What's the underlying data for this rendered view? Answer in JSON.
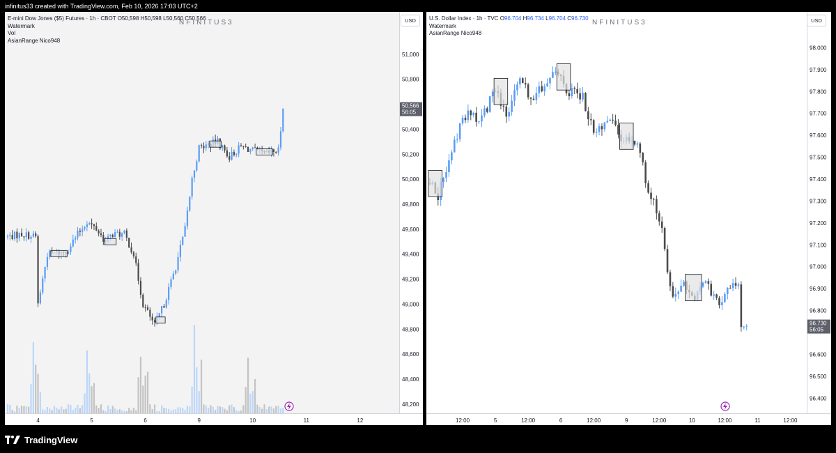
{
  "header": {
    "text": "infinitus33 created with TradingView.com, Feb 10, 2026 17:03 UTC+2"
  },
  "footer": {
    "brand": "TradingView"
  },
  "colors": {
    "up": "#5b9cf6",
    "down": "#4a4a4a",
    "vol_up": "#bcd6fa",
    "vol_down": "#c3c3c3",
    "range_fill": "#e1e1e1",
    "label_bg": "#5d606b",
    "event": "#9c27b0"
  },
  "charts": [
    {
      "title": "E-mini Dow Jones ($5) Futures · 1h · CBOT",
      "o_label": "O",
      "o": "50,598",
      "h_label": "H",
      "h": "50,598",
      "l_label": "L",
      "l": "50,560",
      "c_label": "C",
      "c": "50,566",
      "indicators": [
        "Watermark",
        "Vol",
        "AsianRange Nico948"
      ],
      "watermark": "NFINITUS3",
      "currency": "USD",
      "last_price_label": "50,566",
      "last_price_timer": "56:05",
      "yticks": [
        {
          "v": 51000,
          "t": "51,000"
        },
        {
          "v": 50800,
          "t": "50,800"
        },
        {
          "v": 50600,
          "t": "50,600"
        },
        {
          "v": 50400,
          "t": "50,400"
        },
        {
          "v": 50200,
          "t": "50,200"
        },
        {
          "v": 50000,
          "t": "50,000"
        },
        {
          "v": 49800,
          "t": "49,800"
        },
        {
          "v": 49600,
          "t": "49,600"
        },
        {
          "v": 49400,
          "t": "49,400"
        },
        {
          "v": 49200,
          "t": "49,200"
        },
        {
          "v": 49000,
          "t": "49,000"
        },
        {
          "v": 48800,
          "t": "48,800"
        },
        {
          "v": 48600,
          "t": "48,600"
        },
        {
          "v": 48400,
          "t": "48,400"
        },
        {
          "v": 48200,
          "t": "48,200"
        }
      ],
      "xticks": [
        {
          "i": 13,
          "t": "4"
        },
        {
          "i": 36,
          "t": "5"
        },
        {
          "i": 59,
          "t": "6"
        },
        {
          "i": 82,
          "t": "9"
        },
        {
          "i": 105,
          "t": "10"
        },
        {
          "i": 128,
          "t": "11"
        },
        {
          "i": 151,
          "t": "12"
        }
      ],
      "anchors": [
        [
          0,
          49540
        ],
        [
          6,
          49560
        ],
        [
          12,
          49540
        ],
        [
          13,
          49000
        ],
        [
          17,
          49400
        ],
        [
          25,
          49420
        ],
        [
          30,
          49560
        ],
        [
          34,
          49660
        ],
        [
          38,
          49600
        ],
        [
          42,
          49500
        ],
        [
          45,
          49560
        ],
        [
          50,
          49560
        ],
        [
          54,
          49400
        ],
        [
          58,
          49000
        ],
        [
          63,
          48830
        ],
        [
          67,
          49000
        ],
        [
          72,
          49300
        ],
        [
          76,
          49600
        ],
        [
          79,
          50000
        ],
        [
          82,
          50250
        ],
        [
          90,
          50300
        ],
        [
          95,
          50180
        ],
        [
          100,
          50260
        ],
        [
          110,
          50200
        ],
        [
          116,
          50230
        ],
        [
          118,
          50566
        ]
      ]
    },
    {
      "title": "U.S. Dollar Index · 1h · TVC",
      "o_label": "O",
      "o": "96.704",
      "h_label": "H",
      "h": "96.734",
      "l_label": "L",
      "l": "96.704",
      "c_label": "C",
      "c": "96.730",
      "indicators": [
        "Watermark",
        "AsianRange Nico948"
      ],
      "watermark": "NFINITUS3",
      "currency": "USD",
      "last_price_label": "96.730",
      "last_price_timer": "56:05",
      "yticks": [
        {
          "v": 98.0,
          "t": "98.000"
        },
        {
          "v": 97.9,
          "t": "97.900"
        },
        {
          "v": 97.8,
          "t": "97.800"
        },
        {
          "v": 97.7,
          "t": "97.700"
        },
        {
          "v": 97.6,
          "t": "97.600"
        },
        {
          "v": 97.5,
          "t": "97.500"
        },
        {
          "v": 97.4,
          "t": "97.400"
        },
        {
          "v": 97.3,
          "t": "97.300"
        },
        {
          "v": 97.2,
          "t": "97.200"
        },
        {
          "v": 97.1,
          "t": "97.100"
        },
        {
          "v": 97.0,
          "t": "97.000"
        },
        {
          "v": 96.9,
          "t": "96.900"
        },
        {
          "v": 96.8,
          "t": "96.800"
        },
        {
          "v": 96.6,
          "t": "96.600"
        },
        {
          "v": 96.5,
          "t": "96.500"
        },
        {
          "v": 96.4,
          "t": "96.400"
        }
      ],
      "xticks": [
        {
          "i": 12,
          "t": "12:00"
        },
        {
          "i": 24,
          "t": "5"
        },
        {
          "i": 36,
          "t": "12:00"
        },
        {
          "i": 48,
          "t": "6"
        },
        {
          "i": 60,
          "t": "12:00"
        },
        {
          "i": 72,
          "t": "9"
        },
        {
          "i": 84,
          "t": "12:00"
        },
        {
          "i": 96,
          "t": "10"
        },
        {
          "i": 108,
          "t": "12:00"
        },
        {
          "i": 120,
          "t": "11"
        },
        {
          "i": 132,
          "t": "12:00"
        }
      ],
      "anchors": [
        [
          0,
          97.38
        ],
        [
          3,
          97.32
        ],
        [
          6,
          97.45
        ],
        [
          10,
          97.6
        ],
        [
          14,
          97.72
        ],
        [
          18,
          97.66
        ],
        [
          24,
          97.8
        ],
        [
          28,
          97.7
        ],
        [
          33,
          97.85
        ],
        [
          38,
          97.76
        ],
        [
          45,
          97.9
        ],
        [
          51,
          97.8
        ],
        [
          56,
          97.78
        ],
        [
          60,
          97.6
        ],
        [
          66,
          97.66
        ],
        [
          71,
          97.58
        ],
        [
          76,
          97.56
        ],
        [
          80,
          97.35
        ],
        [
          85,
          97.2
        ],
        [
          87,
          96.96
        ],
        [
          89,
          96.85
        ],
        [
          93,
          96.92
        ],
        [
          97,
          96.86
        ],
        [
          101,
          96.92
        ],
        [
          106,
          96.84
        ],
        [
          110,
          96.9
        ],
        [
          113,
          96.92
        ],
        [
          114,
          96.72
        ],
        [
          116,
          96.73
        ]
      ]
    }
  ]
}
